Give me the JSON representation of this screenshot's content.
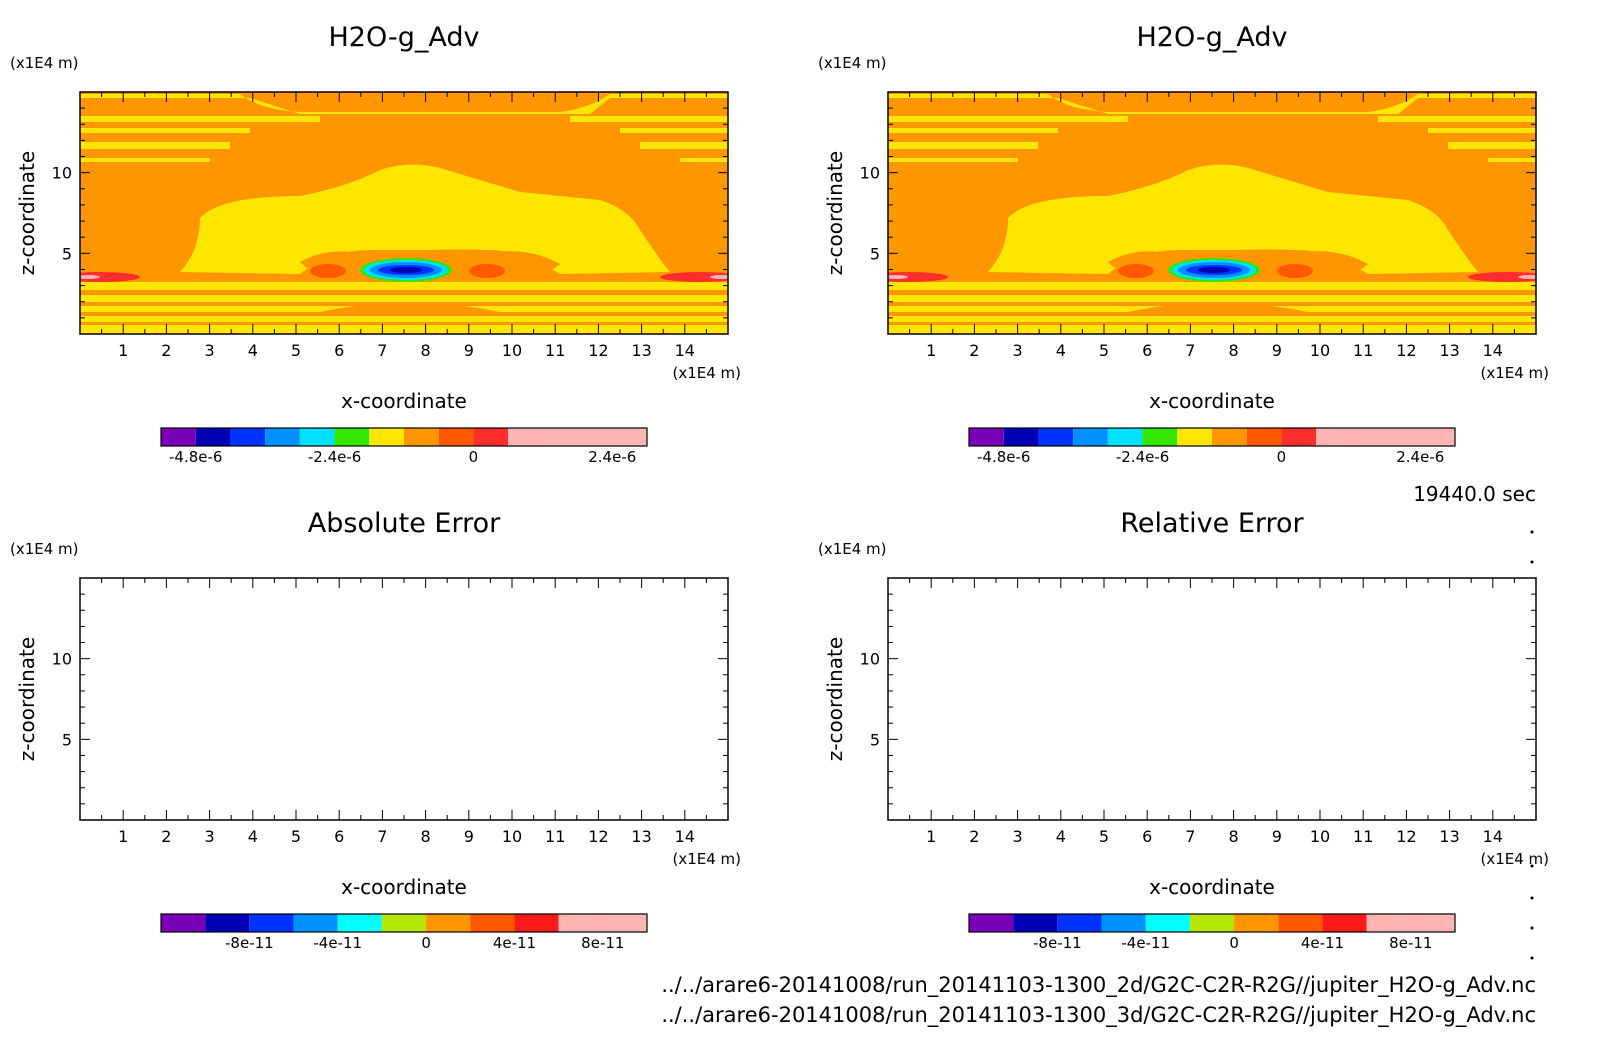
{
  "footer": {
    "time_label": "19440.0 sec",
    "file1": "../../arare6-20141008/run_20141103-1300_2d/G2C-C2R-R2G//jupiter_H2O-g_Adv.nc",
    "file2": "../../arare6-20141008/run_20141103-1300_3d/G2C-C2R-R2G//jupiter_H2O-g_Adv.nc"
  },
  "chart_data": [
    {
      "type": "heatmap",
      "title": "H2O-g_Adv",
      "xlabel": "x-coordinate",
      "ylabel": "z-coordinate",
      "x_unit": "(x1E4 m)",
      "y_unit": "(x1E4 m)",
      "xlim": [
        0,
        15
      ],
      "ylim": [
        0,
        15
      ],
      "xticks": [
        "1",
        "2",
        "3",
        "4",
        "5",
        "6",
        "7",
        "8",
        "9",
        "10",
        "11",
        "12",
        "13",
        "14"
      ],
      "yticks": [
        "5",
        "10"
      ],
      "colorbar": {
        "levels": [
          -5.4e-06,
          -4.8e-06,
          -4.2e-06,
          -3.6e-06,
          -3e-06,
          -2.4e-06,
          -1.8e-06,
          -1.2e-06,
          -6e-07,
          0,
          6e-07,
          1.2e-06,
          1.8e-06,
          2.4e-06,
          3e-06
        ],
        "colors": [
          "#7a00b8",
          "#0000b4",
          "#0033ff",
          "#0090ff",
          "#00e0ff",
          "#33e600",
          "#ffe600",
          "#ff9600",
          "#ff5a00",
          "#ff2d2d",
          "#ffb4b4"
        ],
        "tick_labels": [
          "-4.8e-6",
          "-2.4e-6",
          "0",
          "2.4e-6"
        ],
        "tick_values": [
          -4.8e-06,
          -2.4e-06,
          0,
          2.4e-06
        ]
      }
    },
    {
      "type": "heatmap",
      "title": "H2O-g_Adv",
      "xlabel": "x-coordinate",
      "ylabel": "z-coordinate",
      "x_unit": "(x1E4 m)",
      "y_unit": "(x1E4 m)",
      "xlim": [
        0,
        15
      ],
      "ylim": [
        0,
        15
      ],
      "xticks": [
        "1",
        "2",
        "3",
        "4",
        "5",
        "6",
        "7",
        "8",
        "9",
        "10",
        "11",
        "12",
        "13",
        "14"
      ],
      "yticks": [
        "5",
        "10"
      ],
      "colorbar": {
        "levels": [
          -5.4e-06,
          -4.8e-06,
          -4.2e-06,
          -3.6e-06,
          -3e-06,
          -2.4e-06,
          -1.8e-06,
          -1.2e-06,
          -6e-07,
          0,
          6e-07,
          1.2e-06,
          1.8e-06,
          2.4e-06,
          3e-06
        ],
        "colors": [
          "#7a00b8",
          "#0000b4",
          "#0033ff",
          "#0090ff",
          "#00e0ff",
          "#33e600",
          "#ffe600",
          "#ff9600",
          "#ff5a00",
          "#ff2d2d",
          "#ffb4b4"
        ],
        "tick_labels": [
          "-4.8e-6",
          "-2.4e-6",
          "0",
          "2.4e-6"
        ],
        "tick_values": [
          -4.8e-06,
          -2.4e-06,
          0,
          2.4e-06
        ]
      }
    },
    {
      "type": "heatmap",
      "title": "Absolute Error",
      "xlabel": "x-coordinate",
      "ylabel": "z-coordinate",
      "x_unit": "(x1E4 m)",
      "y_unit": "(x1E4 m)",
      "xlim": [
        0,
        15
      ],
      "ylim": [
        0,
        15
      ],
      "xticks": [
        "1",
        "2",
        "3",
        "4",
        "5",
        "6",
        "7",
        "8",
        "9",
        "10",
        "11",
        "12",
        "13",
        "14"
      ],
      "yticks": [
        "5",
        "10"
      ],
      "values": "empty",
      "colorbar": {
        "levels": [
          -1.2e-10,
          -1e-10,
          -8e-11,
          -6e-11,
          -4e-11,
          -2e-11,
          0,
          2e-11,
          4e-11,
          6e-11,
          8e-11,
          1e-10
        ],
        "colors": [
          "#7a00b8",
          "#0000b4",
          "#0033ff",
          "#0090ff",
          "#00ffff",
          "#b4e600",
          "#ff9600",
          "#ff5a00",
          "#ff1a1a",
          "#ffb4b4"
        ],
        "tick_labels": [
          "-8e-11",
          "-4e-11",
          "0",
          "4e-11",
          "8e-11"
        ],
        "tick_values": [
          -8e-11,
          -4e-11,
          0,
          4e-11,
          8e-11
        ]
      }
    },
    {
      "type": "heatmap",
      "title": "Relative Error",
      "xlabel": "x-coordinate",
      "ylabel": "z-coordinate",
      "x_unit": "(x1E4 m)",
      "y_unit": "(x1E4 m)",
      "xlim": [
        0,
        15
      ],
      "ylim": [
        0,
        15
      ],
      "xticks": [
        "1",
        "2",
        "3",
        "4",
        "5",
        "6",
        "7",
        "8",
        "9",
        "10",
        "11",
        "12",
        "13",
        "14"
      ],
      "yticks": [
        "5",
        "10"
      ],
      "values": "empty",
      "colorbar": {
        "levels": [
          -1.2e-10,
          -1e-10,
          -8e-11,
          -6e-11,
          -4e-11,
          -2e-11,
          0,
          2e-11,
          4e-11,
          6e-11,
          8e-11,
          1e-10
        ],
        "colors": [
          "#7a00b8",
          "#0000b4",
          "#0033ff",
          "#0090ff",
          "#00ffff",
          "#b4e600",
          "#ff9600",
          "#ff5a00",
          "#ff1a1a",
          "#ffb4b4"
        ],
        "tick_labels": [
          "-8e-11",
          "-4e-11",
          "0",
          "4e-11",
          "8e-11"
        ],
        "tick_values": [
          -8e-11,
          -4e-11,
          0,
          4e-11,
          8e-11
        ]
      }
    }
  ]
}
